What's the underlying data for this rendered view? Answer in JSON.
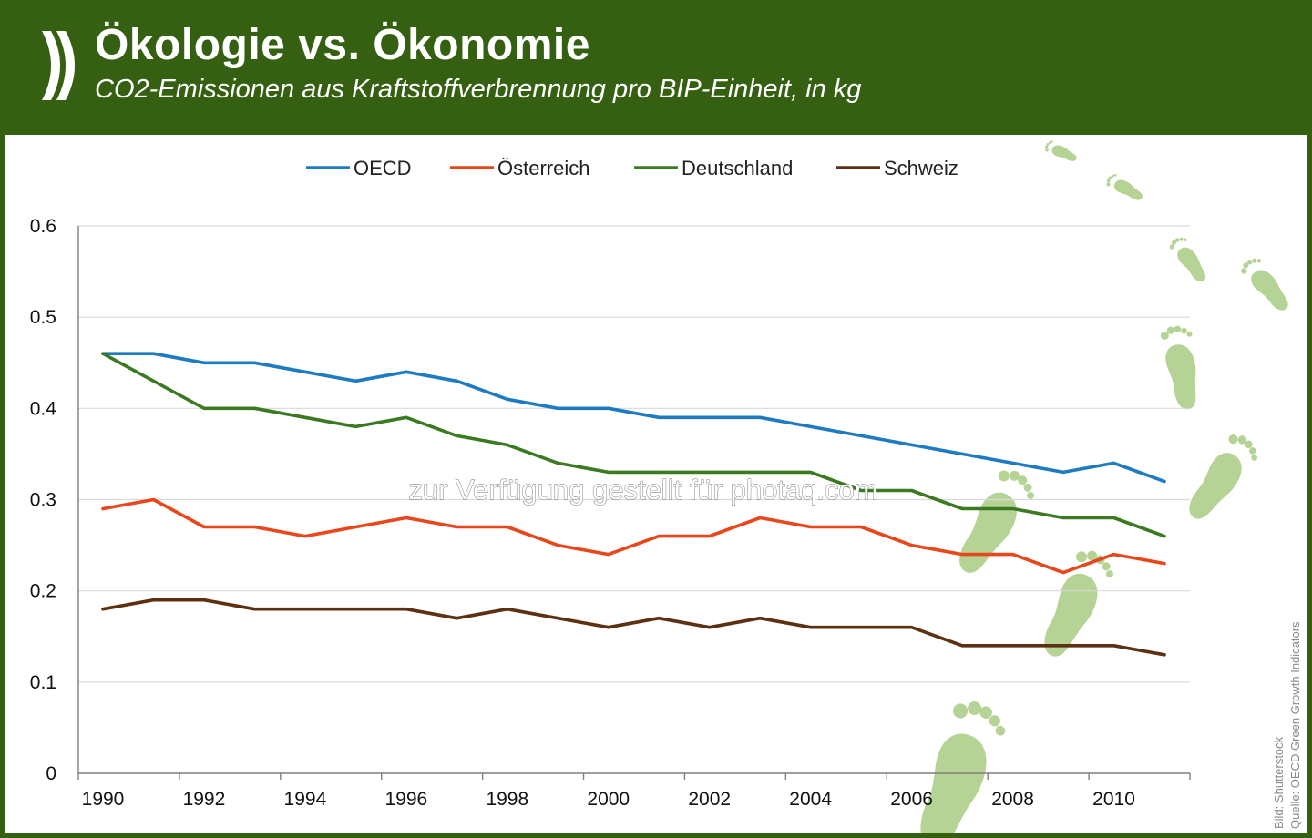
{
  "header": {
    "title": "Ökologie vs. Ökonomie",
    "subtitle": "CO2-Emissionen aus Kraftstoffverbrennung pro BIP-Einheit, in kg"
  },
  "watermark": "zur Verfügung gestellt für photaq.com",
  "credits": {
    "image": "Bild: Shutterstock",
    "source": "Quelle: OECD Green Growth Indicators"
  },
  "colors": {
    "header_bg": "#355f11",
    "gridline": "#d9d9d9",
    "footprint": "#9cc472"
  },
  "chart_data": {
    "type": "line",
    "x": [
      1990,
      1991,
      1992,
      1993,
      1994,
      1995,
      1996,
      1997,
      1998,
      1999,
      2000,
      2001,
      2002,
      2003,
      2004,
      2005,
      2006,
      2007,
      2008,
      2009,
      2010,
      2011
    ],
    "x_tick_labels": [
      "1990",
      "1992",
      "1994",
      "1996",
      "1998",
      "2000",
      "2002",
      "2004",
      "2006",
      "2008",
      "2010"
    ],
    "y_tick_labels": [
      "0",
      "0.1",
      "0.2",
      "0.3",
      "0.4",
      "0.5",
      "0.6"
    ],
    "ylim": [
      0,
      0.6
    ],
    "grid": "horizontal",
    "legend_position": "top",
    "series": [
      {
        "name": "OECD",
        "color": "#1f7bc1",
        "values": [
          0.46,
          0.46,
          0.45,
          0.45,
          0.44,
          0.43,
          0.44,
          0.43,
          0.41,
          0.4,
          0.4,
          0.39,
          0.39,
          0.39,
          0.38,
          0.37,
          0.36,
          0.35,
          0.34,
          0.33,
          0.34,
          0.32
        ]
      },
      {
        "name": "Österreich",
        "color": "#e8471b",
        "values": [
          0.29,
          0.3,
          0.27,
          0.27,
          0.26,
          0.27,
          0.28,
          0.27,
          0.27,
          0.25,
          0.24,
          0.26,
          0.26,
          0.28,
          0.27,
          0.27,
          0.25,
          0.24,
          0.24,
          0.22,
          0.24,
          0.23
        ]
      },
      {
        "name": "Deutschland",
        "color": "#3c7a22",
        "values": [
          0.46,
          0.43,
          0.4,
          0.4,
          0.39,
          0.38,
          0.39,
          0.37,
          0.36,
          0.34,
          0.33,
          0.33,
          0.33,
          0.33,
          0.33,
          0.31,
          0.31,
          0.29,
          0.29,
          0.28,
          0.28,
          0.26
        ]
      },
      {
        "name": "Schweiz",
        "color": "#5c3010",
        "values": [
          0.18,
          0.19,
          0.19,
          0.18,
          0.18,
          0.18,
          0.18,
          0.17,
          0.18,
          0.17,
          0.16,
          0.17,
          0.16,
          0.17,
          0.16,
          0.16,
          0.16,
          0.14,
          0.14,
          0.14,
          0.14,
          0.13
        ]
      }
    ]
  }
}
